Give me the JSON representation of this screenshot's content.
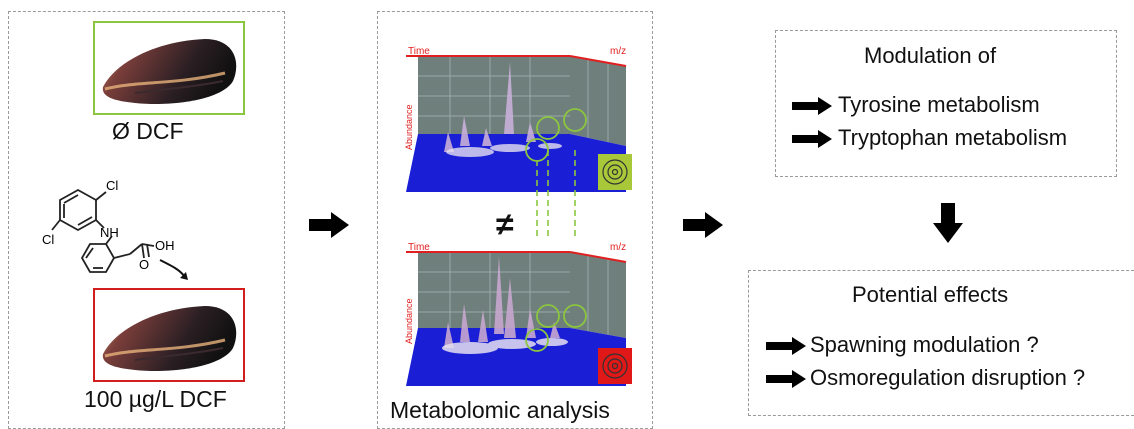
{
  "left_panel": {
    "control": {
      "label": "Ø DCF",
      "border_color": "#8cc63f"
    },
    "exposed": {
      "label": "100 µg/L DCF",
      "border_color": "#d11f1f"
    },
    "molecule": {
      "atom_cl_top": "Cl",
      "atom_cl_bottom": "Cl",
      "atom_nh": "NH",
      "atom_oh": "OH",
      "atom_o": "O"
    }
  },
  "middle_panel": {
    "caption": "Metabolomic analysis",
    "not_equal_symbol": "≠",
    "plot_top": {
      "axis_time": "Time",
      "axis_mz": "m/z",
      "axis_abundance": "Abundance",
      "fingerprint_color": "#a8c83a"
    },
    "plot_bottom": {
      "axis_time": "Time",
      "axis_mz": "m/z",
      "axis_abundance": "Abundance",
      "fingerprint_color": "#e01818"
    },
    "circle_color": "#8cc63f"
  },
  "right_panel": {
    "modulation": {
      "title": "Modulation of",
      "items": [
        "Tyrosine metabolism",
        "Tryptophan metabolism"
      ]
    },
    "effects": {
      "title": "Potential effects",
      "items": [
        "Spawning modulation ?",
        "Osmoregulation disruption ?"
      ]
    }
  },
  "colors": {
    "plot_floor": "#1a1fd6",
    "plot_wall": "#6f7f7c",
    "axis_red": "#e02020"
  }
}
